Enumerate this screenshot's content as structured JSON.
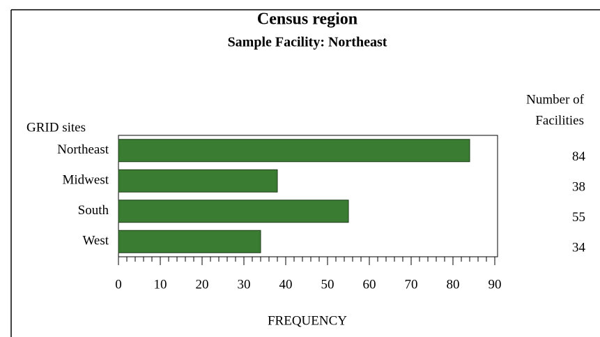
{
  "chart_data": {
    "type": "bar",
    "orientation": "horizontal",
    "title": "Census region",
    "subtitle": "Sample Facility: Northeast",
    "y_label": "GRID sites",
    "x_label": "FREQUENCY",
    "value_column_title": [
      "Number of",
      "Facilities"
    ],
    "categories": [
      "Northeast",
      "Midwest",
      "South",
      "West"
    ],
    "values": [
      84,
      38,
      55,
      34
    ],
    "color": "#3a7d32",
    "xlim": [
      0,
      90
    ],
    "xticks": [
      0,
      10,
      20,
      30,
      40,
      50,
      60,
      70,
      80,
      90
    ],
    "minor_xticks": [
      2,
      4,
      6,
      8,
      12,
      14,
      16,
      18,
      22,
      24,
      26,
      28,
      32,
      34,
      36,
      38,
      42,
      44,
      46,
      48,
      52,
      54,
      56,
      58,
      62,
      64,
      66,
      68,
      72,
      74,
      76,
      78,
      82,
      84,
      86,
      88
    ]
  }
}
